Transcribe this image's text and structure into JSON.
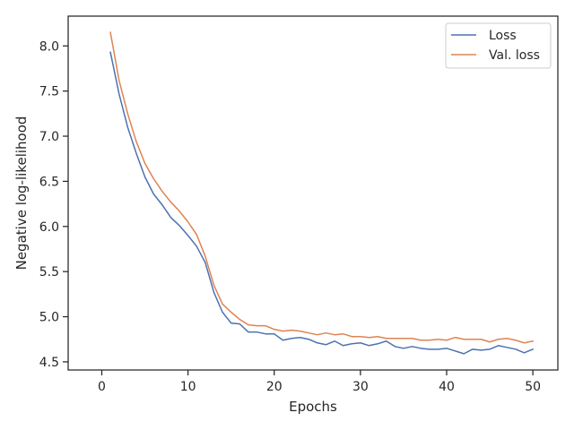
{
  "chart_data": {
    "type": "line",
    "title": "",
    "xlabel": "Epochs",
    "ylabel": "Negative log-likelihood",
    "xlim": [
      -3.9,
      52.9
    ],
    "ylim": [
      4.41,
      8.33
    ],
    "xticks": [
      0,
      10,
      20,
      30,
      40,
      50
    ],
    "yticks": [
      4.5,
      5.0,
      5.5,
      6.0,
      6.5,
      7.0,
      7.5,
      8.0
    ],
    "ytick_labels": [
      "4.5",
      "5.0",
      "5.5",
      "6.0",
      "6.5",
      "7.0",
      "7.5",
      "8.0"
    ],
    "grid": false,
    "legend": {
      "position": "top-right"
    },
    "x": [
      1,
      2,
      3,
      4,
      5,
      6,
      7,
      8,
      9,
      10,
      11,
      12,
      13,
      14,
      15,
      16,
      17,
      18,
      19,
      20,
      21,
      22,
      23,
      24,
      25,
      26,
      27,
      28,
      29,
      30,
      31,
      32,
      33,
      34,
      35,
      36,
      37,
      38,
      39,
      40,
      41,
      42,
      43,
      44,
      45,
      46,
      47,
      48,
      49,
      50
    ],
    "series": [
      {
        "name": "Loss",
        "color": "#4c72b0",
        "values": [
          7.93,
          7.47,
          7.1,
          6.81,
          6.55,
          6.36,
          6.24,
          6.1,
          6.01,
          5.9,
          5.78,
          5.6,
          5.27,
          5.05,
          4.93,
          4.92,
          4.83,
          4.83,
          4.81,
          4.81,
          4.74,
          4.76,
          4.77,
          4.75,
          4.71,
          4.69,
          4.73,
          4.68,
          4.7,
          4.71,
          4.68,
          4.7,
          4.73,
          4.67,
          4.65,
          4.67,
          4.65,
          4.64,
          4.64,
          4.65,
          4.62,
          4.59,
          4.64,
          4.63,
          4.64,
          4.68,
          4.66,
          4.64,
          4.6,
          4.64
        ]
      },
      {
        "name": "Val. loss",
        "color": "#dd8452",
        "values": [
          8.15,
          7.62,
          7.25,
          6.94,
          6.7,
          6.53,
          6.39,
          6.27,
          6.17,
          6.05,
          5.91,
          5.67,
          5.35,
          5.14,
          5.05,
          4.97,
          4.91,
          4.9,
          4.9,
          4.86,
          4.84,
          4.85,
          4.84,
          4.82,
          4.8,
          4.82,
          4.8,
          4.81,
          4.78,
          4.78,
          4.77,
          4.78,
          4.76,
          4.76,
          4.76,
          4.76,
          4.74,
          4.74,
          4.75,
          4.74,
          4.77,
          4.75,
          4.75,
          4.75,
          4.72,
          4.75,
          4.76,
          4.74,
          4.71,
          4.73
        ]
      }
    ]
  }
}
